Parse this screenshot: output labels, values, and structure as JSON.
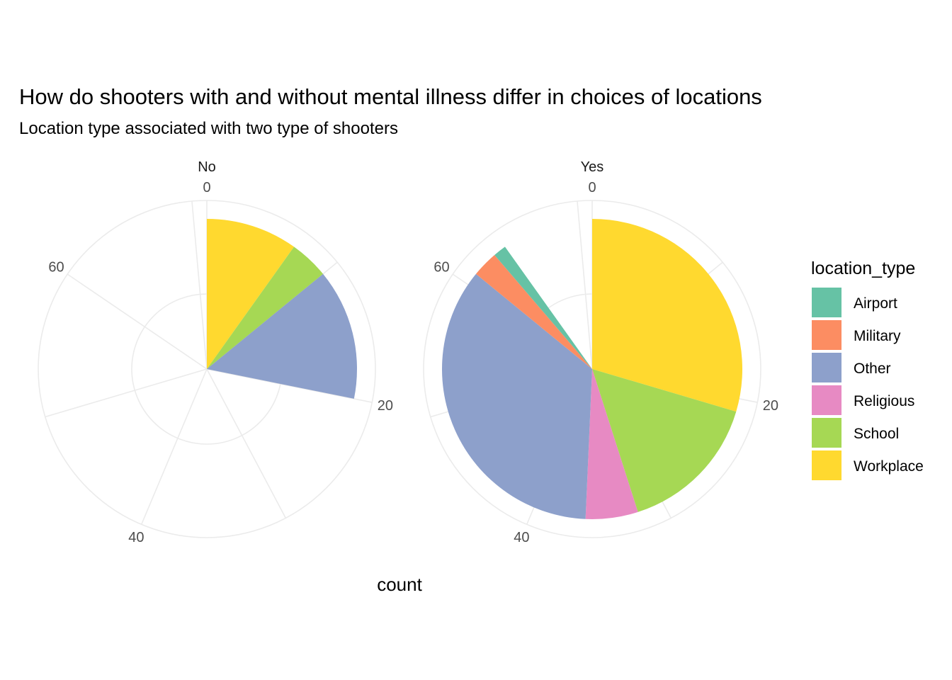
{
  "chart_data": {
    "type": "pie",
    "polar": "coord_polar (theta = count, radius = count)",
    "title": "How do shooters with and without mental illness differ in choices of locations",
    "subtitle": "Location type associated with two type of shooters",
    "xlabel": "count",
    "theta_ticks": [
      "0",
      "20",
      "40",
      "60"
    ],
    "theta_max": 71,
    "legend": {
      "title": "location_type",
      "position": "right",
      "entries": [
        {
          "name": "Airport",
          "color": "#66C2A5"
        },
        {
          "name": "Military",
          "color": "#FC8D62"
        },
        {
          "name": "Other",
          "color": "#8DA0CB"
        },
        {
          "name": "Religious",
          "color": "#E78AC3"
        },
        {
          "name": "School",
          "color": "#A6D854"
        },
        {
          "name": "Workplace",
          "color": "#FFD92F"
        }
      ]
    },
    "panels": [
      {
        "label": "No",
        "slices": [
          {
            "category": "Workplace",
            "value": 7,
            "radius": 1.0
          },
          {
            "category": "School",
            "value": 3,
            "radius": 1.0
          },
          {
            "category": "Other",
            "value": 10,
            "radius": 1.0
          }
        ]
      },
      {
        "label": "Yes",
        "slices": [
          {
            "category": "Workplace",
            "value": 21,
            "radius": 1.0
          },
          {
            "category": "School",
            "value": 11,
            "radius": 1.0
          },
          {
            "category": "Religious",
            "value": 4,
            "radius": 1.0
          },
          {
            "category": "Other",
            "value": 25,
            "radius": 1.0
          },
          {
            "category": "Military",
            "value": 2,
            "radius": 1.0
          },
          {
            "category": "Airport",
            "value": 1,
            "radius": 1.0
          }
        ]
      }
    ]
  }
}
